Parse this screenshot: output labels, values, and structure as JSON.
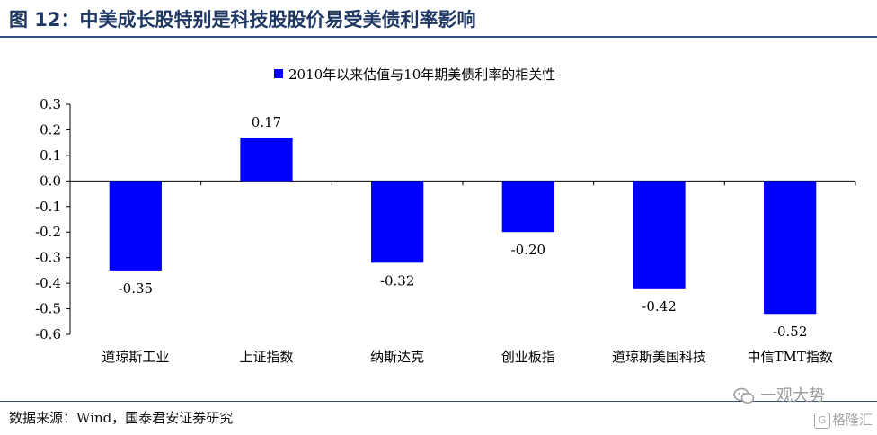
{
  "figure": {
    "title": "图 12：中美成长股特别是科技股股价易受美债利率影响"
  },
  "source": "数据来源：Wind，国泰君安证券研究",
  "watermark": {
    "text": "一观大势",
    "corner_badge": "G",
    "corner_text": "格隆汇"
  },
  "colors": {
    "bar": "#0000ff",
    "title": "#1f3864",
    "rule": "#2f4f7f",
    "axis": "#000000"
  },
  "chart_data": {
    "type": "bar",
    "categories": [
      "道琼斯工业",
      "上证指数",
      "纳斯达克",
      "创业板指",
      "道琼斯美国科技",
      "中信TMT指数"
    ],
    "series": [
      {
        "name": "2010年以来估值与10年期美债利率的相关性",
        "values": [
          -0.35,
          0.17,
          -0.32,
          -0.2,
          -0.42,
          -0.52
        ]
      }
    ],
    "data_labels": [
      "-0.35",
      "0.17",
      "-0.32",
      "-0.20",
      "-0.42",
      "-0.52"
    ],
    "y_ticks": [
      "0.3",
      "0.2",
      "0.1",
      "0.0",
      "-0.1",
      "-0.2",
      "-0.3",
      "-0.4",
      "-0.5",
      "-0.6"
    ],
    "ylim": [
      -0.6,
      0.3
    ],
    "xlabel": "",
    "ylabel": "",
    "legend_position": "top-center",
    "grid": false
  }
}
